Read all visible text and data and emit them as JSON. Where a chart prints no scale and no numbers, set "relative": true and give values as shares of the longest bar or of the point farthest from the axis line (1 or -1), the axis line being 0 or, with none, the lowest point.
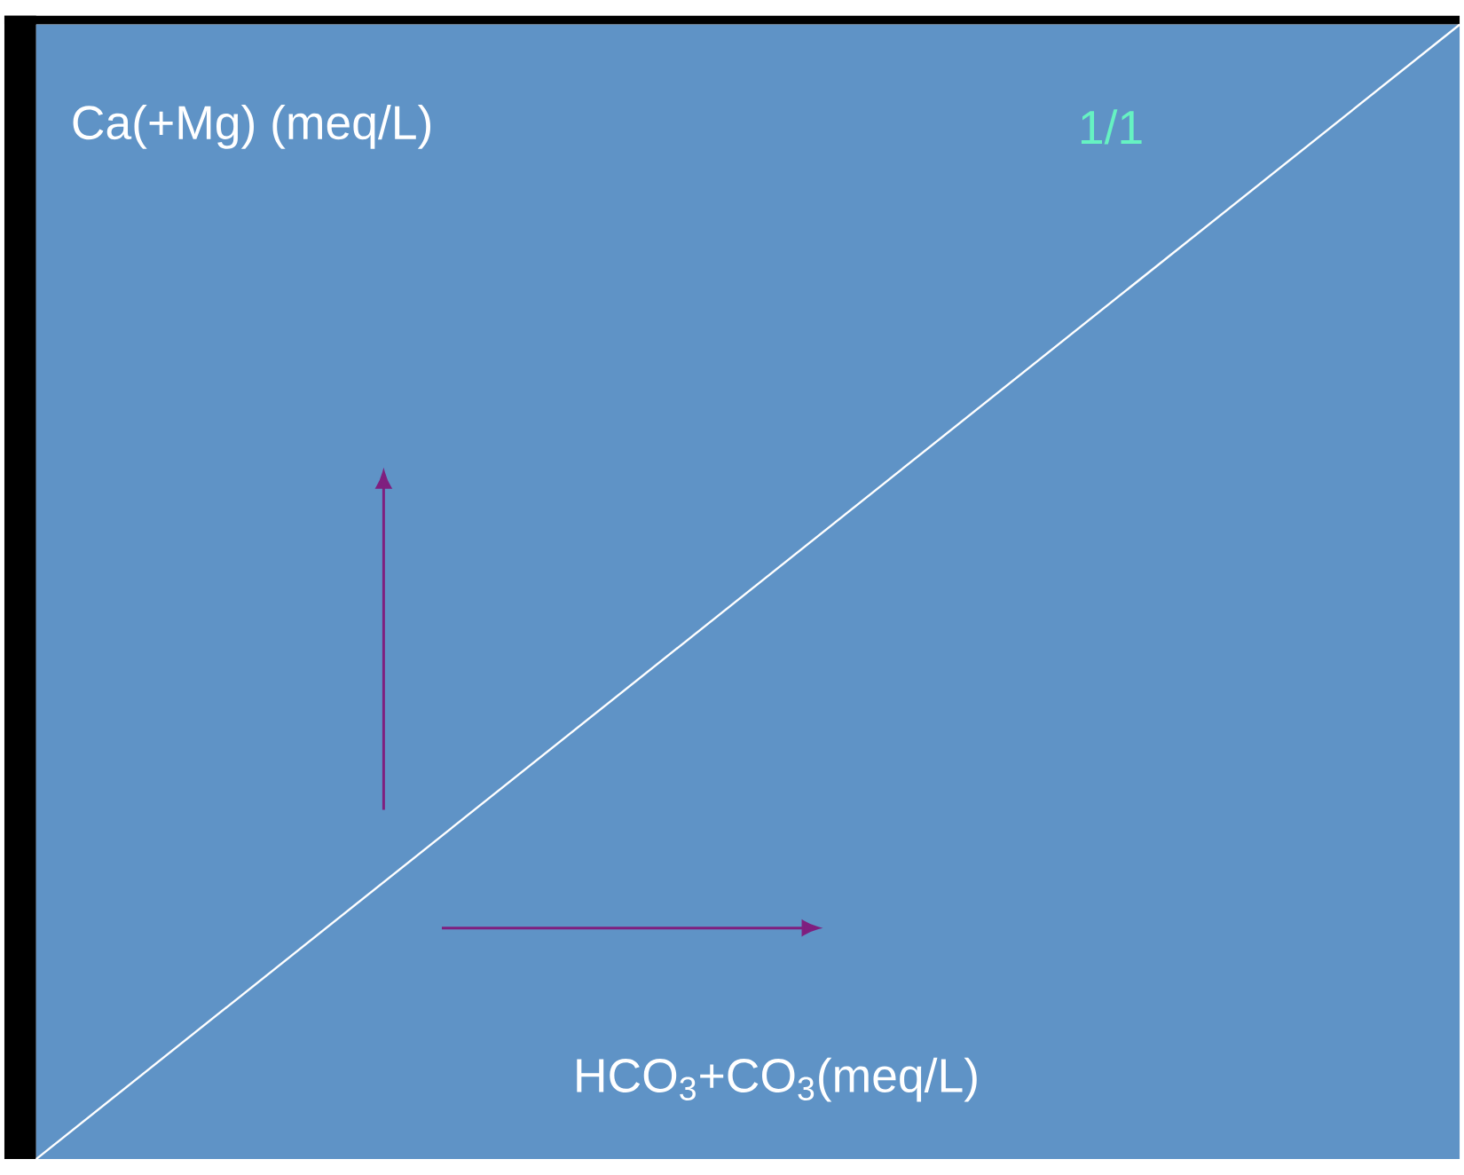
{
  "chart_data": {
    "type": "line",
    "relative": true,
    "categories": [
      null,
      null
    ],
    "values": [
      0,
      1
    ],
    "color": "#ffffff",
    "xlabel": "HCO$_{3}$+CO$_{3}$(meq/L)",
    "ylabel": "Ca(+Mg) (meq/L)",
    "annotations": [
      "1/1"
    ]
  }
}
